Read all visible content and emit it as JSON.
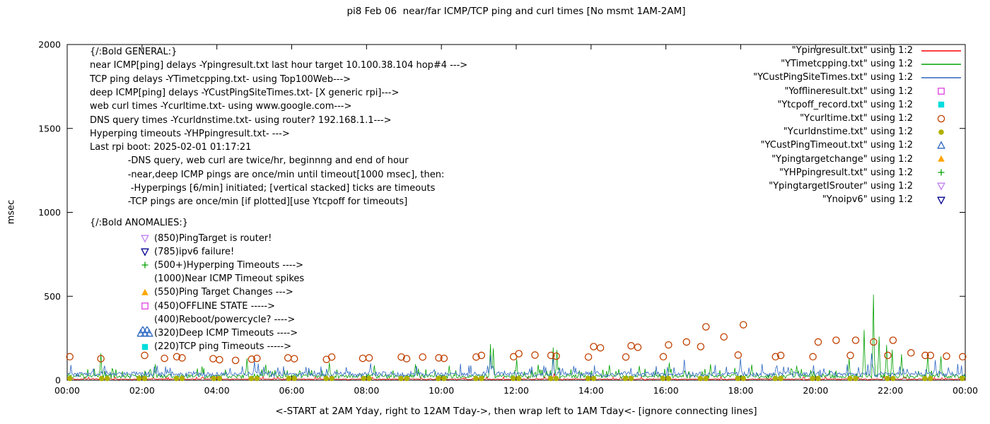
{
  "page": {
    "background": "#ffffff"
  },
  "chart_data": {
    "type": "line",
    "title": "pi8 Feb 06  near/far ICMP/TCP ping and curl times [No msmt 1AM-2AM]",
    "xlabel": "<-START at 2AM Yday, right to 12AM Tday->, then wrap left to 1AM Tday<- [ignore connecting lines]",
    "ylabel": "msec",
    "xlim": [
      0,
      24
    ],
    "ylim": [
      0,
      2000
    ],
    "grid": false,
    "legend_position": "top-right",
    "xticks": {
      "values": [
        0,
        2,
        4,
        6,
        8,
        10,
        12,
        14,
        16,
        18,
        20,
        22,
        24
      ],
      "labels": [
        "00:00",
        "02:00",
        "04:00",
        "06:00",
        "08:00",
        "10:00",
        "12:00",
        "14:00",
        "16:00",
        "18:00",
        "20:00",
        "22:00",
        "00:00"
      ]
    },
    "yticks": {
      "values": [
        0,
        500,
        1000,
        1500,
        2000
      ],
      "labels": [
        "0",
        "500",
        "1000",
        "1500",
        "2000"
      ]
    },
    "series": [
      {
        "name": "Ypingresult",
        "label": "\"Ypingresult.txt\" using 1:2",
        "kind": "line",
        "color": "#ff0000",
        "baseline": 6,
        "noise": 5,
        "spikes": [
          [
            13.02,
            40
          ]
        ]
      },
      {
        "name": "YTimetcpping",
        "label": "\"YTimetcpping.txt\" using 1:2",
        "kind": "line",
        "color": "#00a000",
        "baseline": 24,
        "noise": 16,
        "spikes": [
          [
            0.9,
            160
          ],
          [
            2.35,
            95
          ],
          [
            3.6,
            82
          ],
          [
            4.8,
            130
          ],
          [
            5.3,
            92
          ],
          [
            7.0,
            105
          ],
          [
            8.2,
            88
          ],
          [
            9.3,
            95
          ],
          [
            10.2,
            86
          ],
          [
            11.3,
            215
          ],
          [
            11.38,
            190
          ],
          [
            12.0,
            125
          ],
          [
            12.6,
            92
          ],
          [
            13.0,
            195
          ],
          [
            13.08,
            180
          ],
          [
            14.5,
            90
          ],
          [
            15.3,
            85
          ],
          [
            16.1,
            105
          ],
          [
            17.2,
            95
          ],
          [
            18.3,
            92
          ],
          [
            19.5,
            86
          ],
          [
            20.9,
            130
          ],
          [
            21.3,
            300
          ],
          [
            21.55,
            510
          ],
          [
            21.7,
            260
          ],
          [
            21.9,
            210
          ],
          [
            22.05,
            182
          ],
          [
            22.3,
            155
          ],
          [
            23.0,
            165
          ],
          [
            23.35,
            142
          ]
        ]
      },
      {
        "name": "YCustPingSiteTimes",
        "label": "\"YCustPingSiteTimes.txt\" using 1:2",
        "kind": "line",
        "color": "#2b65c2",
        "baseline": 36,
        "noise": 20,
        "spikes": [
          [
            5.0,
            112
          ],
          [
            8.1,
            100
          ],
          [
            11.3,
            150
          ],
          [
            13.0,
            140
          ],
          [
            16.5,
            122
          ],
          [
            18.0,
            130
          ],
          [
            21.5,
            160
          ],
          [
            23.2,
            120
          ]
        ]
      },
      {
        "name": "Yofflineresult",
        "label": "\"Yofflineresult.txt\" using 1:2",
        "kind": "points",
        "marker": "square-open",
        "color": "#e040e0",
        "points": []
      },
      {
        "name": "Ytcpoff_record",
        "label": "\"Ytcpoff_record.txt\" using 1:2",
        "kind": "points",
        "marker": "square-filled",
        "color": "#00dcdc",
        "points": []
      },
      {
        "name": "Ycurltime",
        "label": "\"Ycurltime.txt\" using 1:2",
        "kind": "points",
        "marker": "circle-open",
        "color": "#c04000",
        "points": [
          [
            0.07,
            140
          ],
          [
            0.9,
            128
          ],
          [
            2.07,
            148
          ],
          [
            2.6,
            130
          ],
          [
            2.93,
            140
          ],
          [
            3.07,
            133
          ],
          [
            3.9,
            128
          ],
          [
            4.07,
            122
          ],
          [
            4.5,
            118
          ],
          [
            4.93,
            125
          ],
          [
            5.07,
            130
          ],
          [
            5.9,
            133
          ],
          [
            6.07,
            128
          ],
          [
            6.93,
            124
          ],
          [
            7.07,
            138
          ],
          [
            7.9,
            130
          ],
          [
            8.07,
            133
          ],
          [
            8.93,
            138
          ],
          [
            9.07,
            128
          ],
          [
            9.5,
            138
          ],
          [
            9.93,
            133
          ],
          [
            10.07,
            130
          ],
          [
            10.93,
            138
          ],
          [
            11.07,
            148
          ],
          [
            11.93,
            140
          ],
          [
            12.07,
            158
          ],
          [
            12.5,
            150
          ],
          [
            12.93,
            148
          ],
          [
            13.07,
            143
          ],
          [
            13.93,
            138
          ],
          [
            14.07,
            200
          ],
          [
            14.25,
            193
          ],
          [
            14.93,
            138
          ],
          [
            15.07,
            205
          ],
          [
            15.25,
            196
          ],
          [
            15.93,
            140
          ],
          [
            16.07,
            210
          ],
          [
            16.55,
            228
          ],
          [
            16.93,
            200
          ],
          [
            17.07,
            318
          ],
          [
            17.55,
            258
          ],
          [
            17.93,
            150
          ],
          [
            18.07,
            330
          ],
          [
            18.93,
            140
          ],
          [
            19.07,
            148
          ],
          [
            19.93,
            140
          ],
          [
            20.07,
            228
          ],
          [
            20.55,
            238
          ],
          [
            20.93,
            148
          ],
          [
            21.07,
            238
          ],
          [
            21.55,
            228
          ],
          [
            21.93,
            148
          ],
          [
            22.07,
            238
          ],
          [
            22.55,
            163
          ],
          [
            22.93,
            148
          ],
          [
            23.07,
            148
          ],
          [
            23.5,
            143
          ],
          [
            23.93,
            140
          ]
        ]
      },
      {
        "name": "Ycurldnstime",
        "label": "\"Ycurldnstime.txt\" using 1:2",
        "kind": "points",
        "marker": "circle-filled",
        "color": "#b0b000",
        "points": [
          [
            0.07,
            10
          ],
          [
            0.92,
            10
          ],
          [
            1.07,
            10
          ],
          [
            1.92,
            10
          ],
          [
            2.07,
            10
          ],
          [
            2.92,
            10
          ],
          [
            3.07,
            10
          ],
          [
            3.92,
            10
          ],
          [
            4.07,
            10
          ],
          [
            4.92,
            10
          ],
          [
            5.07,
            10
          ],
          [
            5.92,
            10
          ],
          [
            6.07,
            10
          ],
          [
            6.92,
            10
          ],
          [
            7.07,
            10
          ],
          [
            7.92,
            10
          ],
          [
            8.07,
            10
          ],
          [
            8.92,
            10
          ],
          [
            9.07,
            10
          ],
          [
            9.92,
            10
          ],
          [
            10.07,
            10
          ],
          [
            10.92,
            10
          ],
          [
            11.07,
            10
          ],
          [
            11.92,
            10
          ],
          [
            12.07,
            10
          ],
          [
            12.92,
            10
          ],
          [
            13.07,
            10
          ],
          [
            13.92,
            10
          ],
          [
            14.07,
            10
          ],
          [
            14.92,
            10
          ],
          [
            15.07,
            10
          ],
          [
            15.92,
            10
          ],
          [
            16.07,
            10
          ],
          [
            16.92,
            10
          ],
          [
            17.07,
            10
          ],
          [
            17.92,
            10
          ],
          [
            18.07,
            10
          ],
          [
            18.92,
            10
          ],
          [
            19.07,
            10
          ],
          [
            19.92,
            10
          ],
          [
            20.07,
            10
          ],
          [
            20.92,
            10
          ],
          [
            21.07,
            10
          ],
          [
            21.92,
            10
          ],
          [
            22.07,
            10
          ],
          [
            22.92,
            10
          ],
          [
            23.07,
            10
          ],
          [
            23.92,
            10
          ]
        ]
      },
      {
        "name": "YCustPingTimeout",
        "label": "\"YCustPingTimeout.txt\" using 1:2",
        "kind": "points",
        "marker": "triangle-up-open",
        "color": "#2b65c2",
        "points": []
      },
      {
        "name": "Ypingtargetchange",
        "label": "\"Ypingtargetchange\" using 1:2",
        "kind": "points",
        "marker": "triangle-up-filled",
        "color": "#ffa500",
        "points": []
      },
      {
        "name": "YHPpingresult",
        "label": "\"YHPpingresult.txt\" using 1:2",
        "kind": "points",
        "marker": "plus",
        "color": "#00a000",
        "points": []
      },
      {
        "name": "YpingtargetISrouter",
        "label": "\"YpingtargetISrouter\" using 1:2",
        "kind": "points",
        "marker": "triangle-down-open",
        "color": "#c080f0",
        "points": []
      },
      {
        "name": "Ynoipv6",
        "label": "\"Ynoipv6\" using 1:2",
        "kind": "points",
        "marker": "triangle-down-open",
        "color": "#000090",
        "points": []
      }
    ],
    "annotations": {
      "general": {
        "lines": [
          "{/:Bold GENERAL:}",
          "near ICMP[ping] delays -Ypingresult.txt last hour target 10.100.38.104 hop#4 --->",
          "TCP ping delays -YTimetcpping.txt- using Top100Web--->",
          "deep ICMP[ping] delays -YCustPingSiteTimes.txt- [X generic rpi]--->",
          "web curl times -Ycurltime.txt- using www.google.com--->",
          "DNS query times -Ycurldnstime.txt- using router? 192.168.1.1--->",
          "Hyperping timeouts -YHPpingresult.txt- --->",
          "Last rpi boot: 2025-02-01 01:17:21",
          "             -DNS query, web curl are twice/hr, beginnng and end of hour",
          "             -near,deep ICMP pings are once/min until timeout[1000 msec], then:",
          "              -Hyperpings [6/min] initiated; [vertical stacked] ticks are timeouts",
          "             -TCP pings are once/min [if plotted][use Ytcpoff for timeouts]"
        ]
      },
      "anomalies": {
        "header": "{/:Bold ANOMALIES:}",
        "rows": [
          {
            "marker": "triangle-down-open",
            "color": "#c080f0",
            "text": "(850)PingTarget is router!"
          },
          {
            "marker": "triangle-down-open",
            "color": "#000090",
            "text": "(785)ipv6 failure!"
          },
          {
            "marker": "plus",
            "color": "#00a000",
            "text": "(500+)Hyperping Timeouts ---->"
          },
          {
            "marker": "none",
            "color": "",
            "text": "(1000)Near ICMP Timeout spikes"
          },
          {
            "marker": "triangle-up-filled",
            "color": "#ffa500",
            "text": "(550)Ping Target Changes --->"
          },
          {
            "marker": "square-open",
            "color": "#e040e0",
            "text": "(450)OFFLINE STATE ----->"
          },
          {
            "marker": "none",
            "color": "",
            "text": "(400)Reboot/powercycle? ---->"
          },
          {
            "marker": "triangle-stack",
            "color": "#2b65c2",
            "text": "(320)Deep ICMP Timeouts ---->"
          },
          {
            "marker": "square-filled",
            "color": "#00dcdc",
            "text": "(220)TCP ping Timeouts ----->"
          }
        ]
      }
    }
  }
}
